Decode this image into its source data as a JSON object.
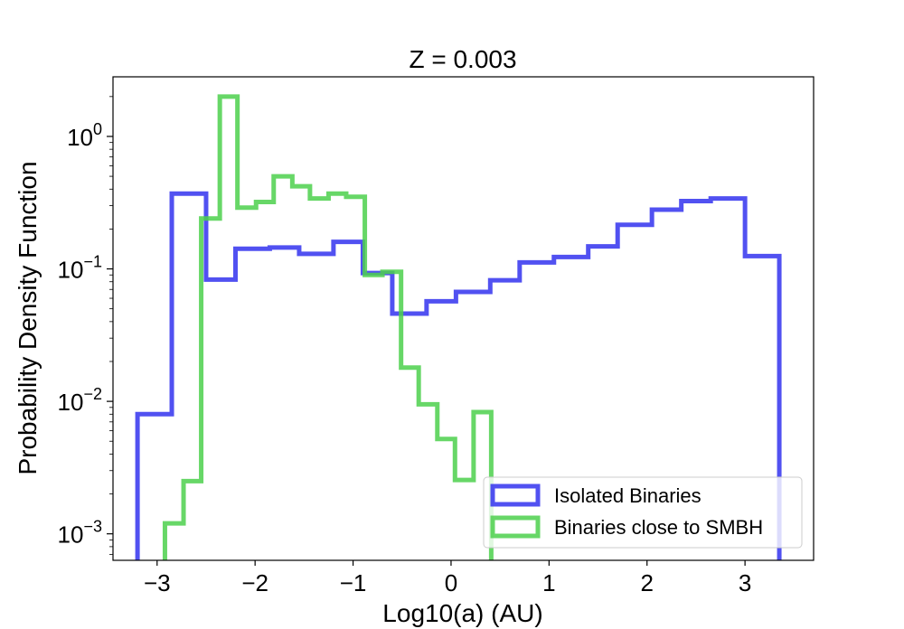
{
  "chart_data": {
    "type": "histogram-step",
    "title": "Z = 0.003",
    "xlabel": "Log10(a) (AU)",
    "ylabel": "Probability Density Function",
    "xlim": [
      -3.45,
      3.7
    ],
    "ylim_log10": [
      -3.2,
      0.45
    ],
    "yscale": "log",
    "x_ticks": [
      -3,
      -2,
      -1,
      0,
      1,
      2,
      3
    ],
    "x_tick_labels": [
      "−3",
      "−2",
      "−1",
      "0",
      "1",
      "2",
      "3"
    ],
    "y_ticks": [
      {
        "base": "10",
        "exp": "0",
        "value": 1
      },
      {
        "base": "10",
        "exp": "−1",
        "value": 0.1
      },
      {
        "base": "10",
        "exp": "−2",
        "value": 0.01
      },
      {
        "base": "10",
        "exp": "−3",
        "value": 0.001
      }
    ],
    "legend_position": "lower right",
    "series": [
      {
        "name": "Isolated Binaries",
        "color": "#3333ee",
        "edges": [
          -3.2,
          -2.85,
          -2.5,
          -2.2,
          -1.85,
          -1.55,
          -1.2,
          -0.9,
          -0.6,
          -0.25,
          0.05,
          0.4,
          0.7,
          1.05,
          1.4,
          1.7,
          2.05,
          2.35,
          2.65,
          3.0,
          3.35
        ],
        "values": [
          0.008,
          0.37,
          0.083,
          0.142,
          0.145,
          0.13,
          0.16,
          0.093,
          0.046,
          0.057,
          0.067,
          0.082,
          0.112,
          0.123,
          0.148,
          0.215,
          0.28,
          0.325,
          0.34,
          0.125
        ]
      },
      {
        "name": "Binaries close to SMBH",
        "color": "#4cd04c",
        "edges": [
          -3.1,
          -2.92,
          -2.73,
          -2.55,
          -2.36,
          -2.18,
          -1.99,
          -1.81,
          -1.62,
          -1.44,
          -1.25,
          -1.07,
          -0.88,
          -0.7,
          -0.51,
          -0.33,
          -0.14,
          0.04,
          0.23,
          0.41
        ],
        "values": [
          0.0003,
          0.0012,
          0.0025,
          0.24,
          2.0,
          0.29,
          0.32,
          0.5,
          0.42,
          0.34,
          0.37,
          0.35,
          0.09,
          0.095,
          0.018,
          0.0095,
          0.0052,
          0.00255,
          0.0083
        ]
      }
    ]
  }
}
